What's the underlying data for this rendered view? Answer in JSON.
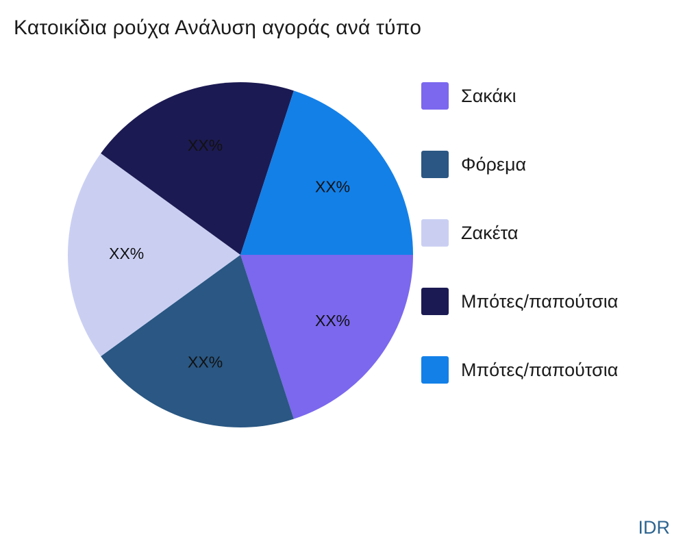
{
  "chart_data": {
    "type": "pie",
    "title": "Κατοικίδια ρούχα Ανάλυση αγοράς ανά τύπο",
    "footer_label": "IDR",
    "legend_position": "right",
    "start_angle_deg": 0,
    "direction": "clockwise",
    "slices": [
      {
        "label": "Σακάκι",
        "value": 20,
        "display_label": "XX%",
        "color": "#7B68EE"
      },
      {
        "label": "Φόρεμα",
        "value": 20,
        "display_label": "XX%",
        "color": "#2A5783"
      },
      {
        "label": "Ζακέτα",
        "value": 20,
        "display_label": "XX%",
        "color": "#CACFF2"
      },
      {
        "label": "Μπότες/παπούτσια",
        "value": 20,
        "display_label": "XX%",
        "color": "#1C1A52"
      },
      {
        "label": "Μπότες/παπούτσια",
        "value": 20,
        "display_label": "XX%",
        "color": "#1380E8"
      }
    ]
  }
}
